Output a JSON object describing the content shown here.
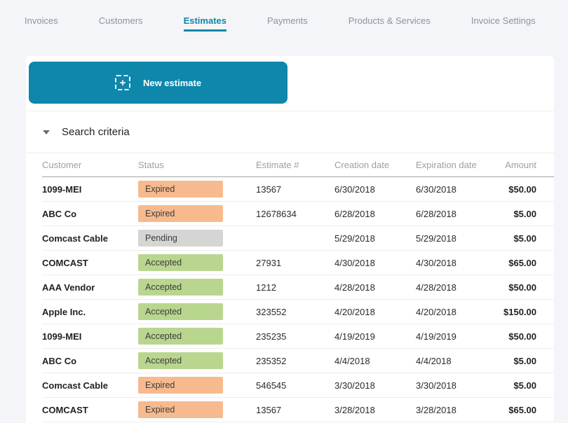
{
  "colors": {
    "accent": "#0e87ab",
    "page_bg": "#f4f5f8",
    "badge_expired": "#f7ba8e",
    "badge_accepted": "#b9d68f",
    "badge_pending": "#d5d5d3"
  },
  "tabs": [
    {
      "label": "Invoices",
      "active": false
    },
    {
      "label": "Customers",
      "active": false
    },
    {
      "label": "Estimates",
      "active": true
    },
    {
      "label": "Payments",
      "active": false
    },
    {
      "label": "Products & Services",
      "active": false
    },
    {
      "label": "Invoice Settings",
      "active": false
    }
  ],
  "toolbar": {
    "new_estimate_label": "New estimate",
    "add_icon_glyph": "+"
  },
  "search": {
    "label": "Search criteria"
  },
  "table": {
    "columns": [
      "Customer",
      "Status",
      "Estimate #",
      "Creation date",
      "Expiration date",
      "Amount"
    ],
    "status_colors": {
      "Expired": "#f7ba8e",
      "Pending": "#d5d5d3",
      "Accepted": "#b9d68f"
    },
    "rows": [
      {
        "customer": "1099-MEI",
        "status": "Expired",
        "estimate": "13567",
        "creation": "6/30/2018",
        "expiration": "6/30/2018",
        "amount": "$50.00"
      },
      {
        "customer": "ABC Co",
        "status": "Expired",
        "estimate": "12678634",
        "creation": "6/28/2018",
        "expiration": "6/28/2018",
        "amount": "$5.00"
      },
      {
        "customer": "Comcast Cable",
        "status": "Pending",
        "estimate": "",
        "creation": "5/29/2018",
        "expiration": "5/29/2018",
        "amount": "$5.00"
      },
      {
        "customer": "COMCAST",
        "status": "Accepted",
        "estimate": "27931",
        "creation": "4/30/2018",
        "expiration": "4/30/2018",
        "amount": "$65.00"
      },
      {
        "customer": "AAA Vendor",
        "status": "Accepted",
        "estimate": "1212",
        "creation": "4/28/2018",
        "expiration": "4/28/2018",
        "amount": "$50.00"
      },
      {
        "customer": "Apple Inc.",
        "status": "Accepted",
        "estimate": "323552",
        "creation": "4/20/2018",
        "expiration": "4/20/2018",
        "amount": "$150.00"
      },
      {
        "customer": "1099-MEI",
        "status": "Accepted",
        "estimate": "235235",
        "creation": "4/19/2019",
        "expiration": "4/19/2019",
        "amount": "$50.00"
      },
      {
        "customer": "ABC Co",
        "status": "Accepted",
        "estimate": "235352",
        "creation": "4/4/2018",
        "expiration": "4/4/2018",
        "amount": "$5.00"
      },
      {
        "customer": "Comcast Cable",
        "status": "Expired",
        "estimate": "546545",
        "creation": "3/30/2018",
        "expiration": "3/30/2018",
        "amount": "$5.00"
      },
      {
        "customer": "COMCAST",
        "status": "Expired",
        "estimate": "13567",
        "creation": "3/28/2018",
        "expiration": "3/28/2018",
        "amount": "$65.00"
      }
    ],
    "partial_row": {
      "status_color": "#d5d5d3"
    }
  }
}
